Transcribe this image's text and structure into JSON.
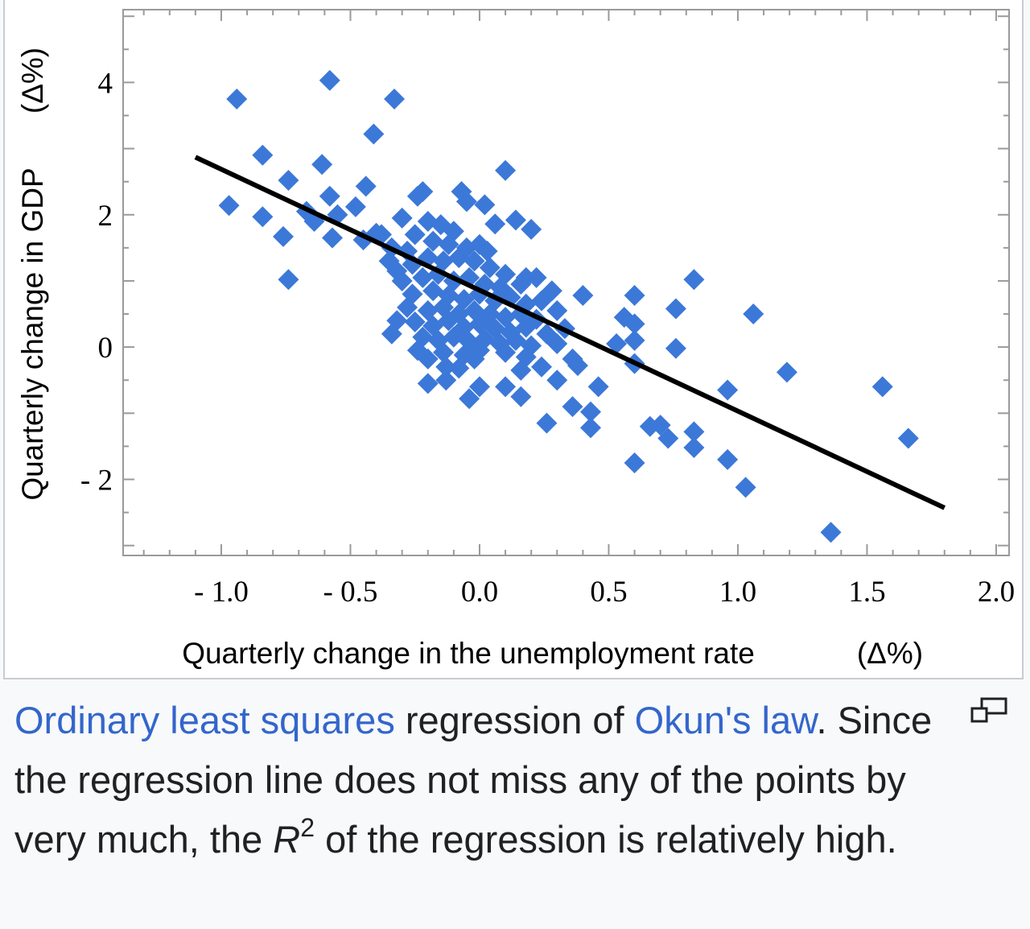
{
  "chart_data": {
    "type": "scatter",
    "title": "",
    "xlabel": "Quarterly change in the unemployment rate",
    "xlabel_unit": "(Δ%)",
    "ylabel": "Quarterly change in GDP",
    "ylabel_unit": "(Δ%)",
    "xlim": [
      -1.38,
      2.05
    ],
    "ylim": [
      -3.15,
      5.1
    ],
    "x_ticks": [
      -1.0,
      -0.5,
      0.0,
      0.5,
      1.0,
      1.5,
      2.0
    ],
    "x_tick_labels": [
      "- 1.0",
      "- 0.5",
      "0.0",
      "0.5",
      "1.0",
      "1.5",
      "2.0"
    ],
    "y_ticks": [
      -2,
      0,
      2,
      4
    ],
    "y_tick_labels": [
      "- 2",
      "0",
      "2",
      "4"
    ],
    "grid": false,
    "point_color": "#3c78d8",
    "line_color": "#000000",
    "regression_line": {
      "x": [
        -1.1,
        1.8
      ],
      "y": [
        2.87,
        -2.43
      ]
    },
    "points": [
      {
        "x": -0.94,
        "y": 3.75
      },
      {
        "x": -0.58,
        "y": 4.03
      },
      {
        "x": -0.33,
        "y": 3.75
      },
      {
        "x": -0.41,
        "y": 3.22
      },
      {
        "x": -0.84,
        "y": 2.9
      },
      {
        "x": -0.61,
        "y": 2.76
      },
      {
        "x": 0.1,
        "y": 2.67
      },
      {
        "x": -0.74,
        "y": 2.52
      },
      {
        "x": -0.44,
        "y": 2.43
      },
      {
        "x": -0.58,
        "y": 2.28
      },
      {
        "x": -0.97,
        "y": 2.14
      },
      {
        "x": -0.84,
        "y": 1.97
      },
      {
        "x": -0.67,
        "y": 2.05
      },
      {
        "x": -0.64,
        "y": 1.9
      },
      {
        "x": -0.55,
        "y": 2.0
      },
      {
        "x": -0.48,
        "y": 2.12
      },
      {
        "x": -0.76,
        "y": 1.67
      },
      {
        "x": -0.57,
        "y": 1.65
      },
      {
        "x": -0.74,
        "y": 1.02
      },
      {
        "x": -0.45,
        "y": 1.62
      },
      {
        "x": -0.4,
        "y": 1.72
      },
      {
        "x": -0.24,
        "y": 2.28
      },
      {
        "x": -0.22,
        "y": 2.35
      },
      {
        "x": -0.07,
        "y": 2.35
      },
      {
        "x": -0.05,
        "y": 2.2
      },
      {
        "x": 0.02,
        "y": 2.15
      },
      {
        "x": 0.06,
        "y": 1.86
      },
      {
        "x": 0.14,
        "y": 1.92
      },
      {
        "x": 0.2,
        "y": 1.78
      },
      {
        "x": -0.3,
        "y": 1.95
      },
      {
        "x": -0.2,
        "y": 1.9
      },
      {
        "x": -0.15,
        "y": 1.85
      },
      {
        "x": -0.25,
        "y": 1.7
      },
      {
        "x": -0.18,
        "y": 1.6
      },
      {
        "x": -0.12,
        "y": 1.55
      },
      {
        "x": -0.05,
        "y": 1.5
      },
      {
        "x": 0.0,
        "y": 1.55
      },
      {
        "x": -0.28,
        "y": 1.45
      },
      {
        "x": -0.35,
        "y": 1.3
      },
      {
        "x": -0.32,
        "y": 1.15
      },
      {
        "x": -0.26,
        "y": 1.25
      },
      {
        "x": -0.2,
        "y": 1.35
      },
      {
        "x": -0.14,
        "y": 1.3
      },
      {
        "x": -0.08,
        "y": 1.35
      },
      {
        "x": -0.02,
        "y": 1.3
      },
      {
        "x": 0.04,
        "y": 1.2
      },
      {
        "x": 0.1,
        "y": 1.1
      },
      {
        "x": -0.3,
        "y": 1.0
      },
      {
        "x": -0.22,
        "y": 1.05
      },
      {
        "x": -0.16,
        "y": 1.1
      },
      {
        "x": -0.1,
        "y": 1.0
      },
      {
        "x": -0.04,
        "y": 1.05
      },
      {
        "x": 0.02,
        "y": 0.95
      },
      {
        "x": 0.08,
        "y": 0.9
      },
      {
        "x": 0.16,
        "y": 0.95
      },
      {
        "x": 0.22,
        "y": 1.05
      },
      {
        "x": 0.28,
        "y": 0.85
      },
      {
        "x": -0.26,
        "y": 0.8
      },
      {
        "x": -0.18,
        "y": 0.85
      },
      {
        "x": -0.12,
        "y": 0.78
      },
      {
        "x": -0.06,
        "y": 0.72
      },
      {
        "x": 0.0,
        "y": 0.8
      },
      {
        "x": 0.06,
        "y": 0.7
      },
      {
        "x": 0.12,
        "y": 0.75
      },
      {
        "x": 0.18,
        "y": 0.65
      },
      {
        "x": 0.24,
        "y": 0.7
      },
      {
        "x": -0.28,
        "y": 0.6
      },
      {
        "x": -0.2,
        "y": 0.55
      },
      {
        "x": -0.14,
        "y": 0.6
      },
      {
        "x": -0.08,
        "y": 0.5
      },
      {
        "x": -0.02,
        "y": 0.55
      },
      {
        "x": 0.04,
        "y": 0.5
      },
      {
        "x": 0.1,
        "y": 0.45
      },
      {
        "x": 0.16,
        "y": 0.5
      },
      {
        "x": 0.22,
        "y": 0.42
      },
      {
        "x": 0.3,
        "y": 0.55
      },
      {
        "x": -0.25,
        "y": 0.38
      },
      {
        "x": -0.18,
        "y": 0.32
      },
      {
        "x": -0.12,
        "y": 0.4
      },
      {
        "x": -0.06,
        "y": 0.3
      },
      {
        "x": 0.0,
        "y": 0.35
      },
      {
        "x": 0.06,
        "y": 0.28
      },
      {
        "x": 0.12,
        "y": 0.22
      },
      {
        "x": 0.18,
        "y": 0.3
      },
      {
        "x": 0.26,
        "y": 0.2
      },
      {
        "x": 0.33,
        "y": 0.28
      },
      {
        "x": -0.34,
        "y": 0.2
      },
      {
        "x": -0.22,
        "y": 0.15
      },
      {
        "x": -0.16,
        "y": 0.1
      },
      {
        "x": -0.1,
        "y": 0.15
      },
      {
        "x": -0.04,
        "y": 0.08
      },
      {
        "x": 0.02,
        "y": 0.12
      },
      {
        "x": 0.08,
        "y": 0.05
      },
      {
        "x": 0.14,
        "y": 0.1
      },
      {
        "x": 0.2,
        "y": 0.02
      },
      {
        "x": 0.3,
        "y": 0.05
      },
      {
        "x": -0.24,
        "y": -0.05
      },
      {
        "x": -0.14,
        "y": -0.08
      },
      {
        "x": -0.06,
        "y": -0.12
      },
      {
        "x": 0.0,
        "y": -0.05
      },
      {
        "x": 0.1,
        "y": -0.08
      },
      {
        "x": 0.18,
        "y": -0.15
      },
      {
        "x": 0.36,
        "y": -0.18
      },
      {
        "x": 0.38,
        "y": -0.28
      },
      {
        "x": 0.24,
        "y": -0.3
      },
      {
        "x": 0.16,
        "y": -0.35
      },
      {
        "x": -0.02,
        "y": -0.18
      },
      {
        "x": -0.2,
        "y": -0.18
      },
      {
        "x": -0.13,
        "y": -0.3
      },
      {
        "x": -0.08,
        "y": -0.32
      },
      {
        "x": -0.2,
        "y": -0.55
      },
      {
        "x": -0.13,
        "y": -0.5
      },
      {
        "x": 0.0,
        "y": -0.6
      },
      {
        "x": 0.1,
        "y": -0.6
      },
      {
        "x": 0.16,
        "y": -0.75
      },
      {
        "x": -0.04,
        "y": -0.78
      },
      {
        "x": 0.3,
        "y": -0.5
      },
      {
        "x": 0.36,
        "y": -0.9
      },
      {
        "x": 0.43,
        "y": -0.98
      },
      {
        "x": 0.46,
        "y": -0.6
      },
      {
        "x": 0.26,
        "y": -1.15
      },
      {
        "x": 0.43,
        "y": -1.22
      },
      {
        "x": 0.4,
        "y": 0.78
      },
      {
        "x": 0.56,
        "y": 0.45
      },
      {
        "x": 0.6,
        "y": 0.35
      },
      {
        "x": 0.6,
        "y": 0.78
      },
      {
        "x": 0.76,
        "y": 0.58
      },
      {
        "x": 0.83,
        "y": 1.02
      },
      {
        "x": 0.53,
        "y": 0.05
      },
      {
        "x": 0.6,
        "y": 0.1
      },
      {
        "x": 0.76,
        "y": -0.02
      },
      {
        "x": 0.6,
        "y": -0.25
      },
      {
        "x": 1.06,
        "y": 0.5
      },
      {
        "x": 1.19,
        "y": -0.38
      },
      {
        "x": 0.96,
        "y": -0.65
      },
      {
        "x": 0.66,
        "y": -1.2
      },
      {
        "x": 0.7,
        "y": -1.18
      },
      {
        "x": 0.73,
        "y": -1.38
      },
      {
        "x": 0.83,
        "y": -1.28
      },
      {
        "x": 0.83,
        "y": -1.52
      },
      {
        "x": 0.6,
        "y": -1.75
      },
      {
        "x": 0.96,
        "y": -1.7
      },
      {
        "x": 1.03,
        "y": -2.12
      },
      {
        "x": 1.36,
        "y": -2.8
      },
      {
        "x": 1.56,
        "y": -0.6
      },
      {
        "x": 1.66,
        "y": -1.38
      },
      {
        "x": -0.34,
        "y": 1.5
      },
      {
        "x": -0.38,
        "y": 1.7
      },
      {
        "x": -0.1,
        "y": 1.75
      },
      {
        "x": 0.03,
        "y": 1.45
      },
      {
        "x": 0.18,
        "y": 1.05
      },
      {
        "x": -0.32,
        "y": 0.4
      }
    ]
  },
  "caption": {
    "link_1": "Ordinary least squares",
    "text_1": " regression of ",
    "link_2": "Okun's law",
    "text_2": ". Since the regression line does not miss any of the points by very much, the ",
    "variable": "R",
    "superscript": "2",
    "text_3": " of the regression is relatively high."
  },
  "controls": {
    "magnify_icon": "enlarge-icon"
  }
}
